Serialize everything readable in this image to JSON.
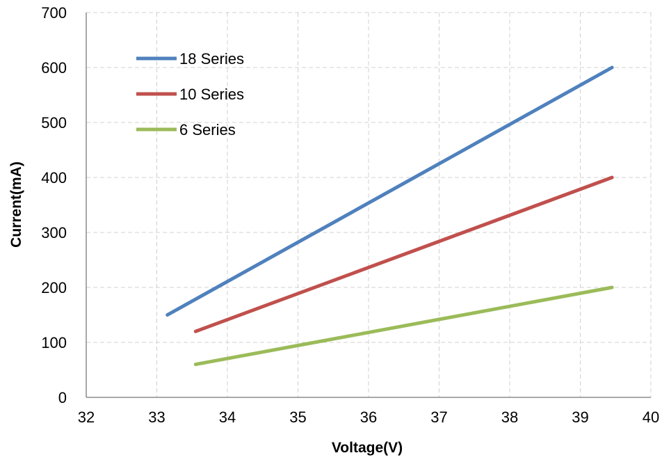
{
  "chart_data": {
    "type": "line",
    "title": "",
    "xlabel": "Voltage(V)",
    "ylabel": "Current(mA)",
    "xlim": [
      32,
      40
    ],
    "ylim": [
      0,
      700
    ],
    "xticks": [
      "32",
      "33",
      "34",
      "35",
      "36",
      "37",
      "38",
      "39",
      "40"
    ],
    "yticks": [
      "0",
      "100",
      "200",
      "300",
      "400",
      "500",
      "600",
      "700"
    ],
    "grid": true,
    "legend_position": "top-left",
    "series": [
      {
        "name": "18 Series",
        "color": "#4f81bd",
        "x": [
          33.15,
          39.45
        ],
        "y": [
          150,
          600
        ]
      },
      {
        "name": "10 Series",
        "color": "#c0504d",
        "x": [
          33.55,
          39.45
        ],
        "y": [
          120,
          400
        ]
      },
      {
        "name": "6 Series",
        "color": "#9bbb59",
        "x": [
          33.55,
          39.45
        ],
        "y": [
          60,
          200
        ]
      }
    ]
  }
}
